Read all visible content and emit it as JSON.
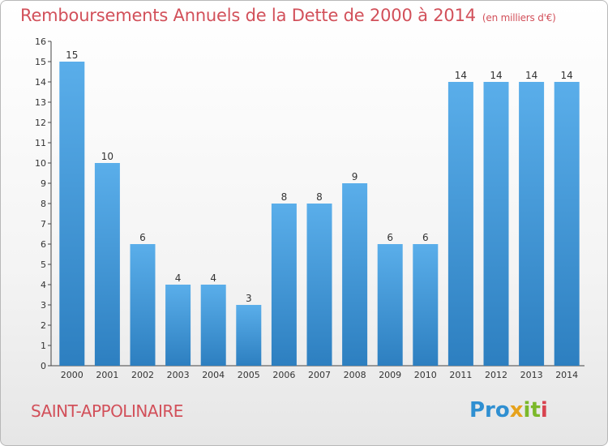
{
  "title": "Remboursements Annuels de la Dette de 2000 à 2014",
  "subtitle": "(en milliers d'€)",
  "commune": "SAINT-APPOLINAIRE",
  "logo": {
    "text": "Proxiti",
    "p1": "Pro",
    "p2": "x",
    "p3": "it",
    "p4": "i"
  },
  "colors": {
    "title": "#d2505a",
    "bar_top": "#5aaeea",
    "bar_bottom": "#2d7fc0"
  },
  "chart_data": {
    "type": "bar",
    "categories": [
      "2000",
      "2001",
      "2002",
      "2003",
      "2004",
      "2005",
      "2006",
      "2007",
      "2008",
      "2009",
      "2010",
      "2011",
      "2012",
      "2013",
      "2014"
    ],
    "values": [
      15,
      10,
      6,
      4,
      4,
      3,
      8,
      8,
      9,
      6,
      6,
      14,
      14,
      14,
      14
    ],
    "title": "Remboursements Annuels de la Dette de 2000 à 2014",
    "ylim": [
      0,
      16
    ],
    "yticks": [
      0,
      1,
      2,
      3,
      4,
      5,
      6,
      7,
      8,
      9,
      10,
      11,
      12,
      13,
      14,
      15,
      16
    ],
    "grid": false,
    "data_labels": true
  }
}
